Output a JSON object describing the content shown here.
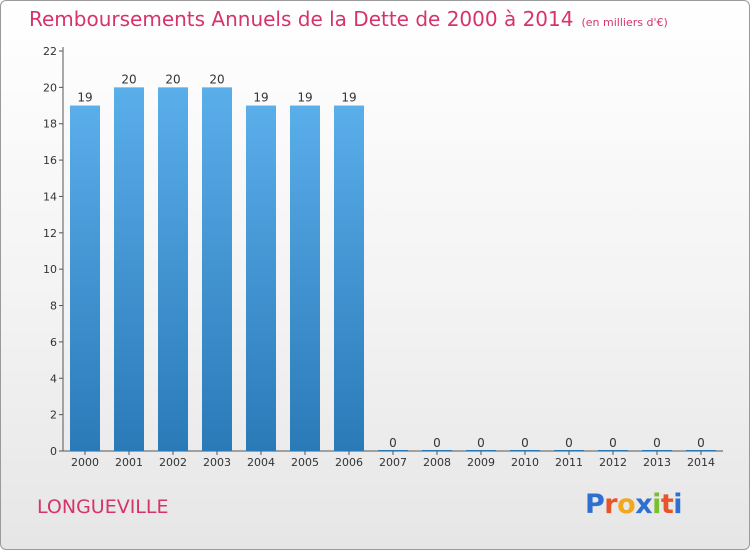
{
  "chart_data": {
    "type": "bar",
    "title": "Remboursements Annuels de la Dette de 2000 à 2014",
    "subtitle": "(en milliers d'€)",
    "categories": [
      "2000",
      "2001",
      "2002",
      "2003",
      "2004",
      "2005",
      "2006",
      "2007",
      "2008",
      "2009",
      "2010",
      "2011",
      "2012",
      "2013",
      "2014"
    ],
    "values": [
      19,
      20,
      20,
      20,
      19,
      19,
      19,
      0,
      0,
      0,
      0,
      0,
      0,
      0,
      0
    ],
    "ylim": [
      0,
      22
    ],
    "yticks": [
      0,
      2,
      4,
      6,
      8,
      10,
      12,
      14,
      16,
      18,
      20,
      22
    ],
    "grid": false,
    "bar_color_top": "#5aaeea",
    "bar_color_bottom": "#2a7ab8"
  },
  "place": "LONGUEVILLE",
  "brand": {
    "name": "Proxiti",
    "letters": [
      {
        "ch": "P",
        "color": "#2f6fd0"
      },
      {
        "ch": "r",
        "color": "#e8542a"
      },
      {
        "ch": "o",
        "color": "#f2a81d"
      },
      {
        "ch": "x",
        "color": "#2f6fd0"
      },
      {
        "ch": "i",
        "color": "#7bbf2e"
      },
      {
        "ch": "t",
        "color": "#e8542a"
      },
      {
        "ch": "i",
        "color": "#2f6fd0"
      }
    ]
  },
  "colors": {
    "accent": "#d6336c",
    "axis": "#555555",
    "text": "#333333"
  }
}
